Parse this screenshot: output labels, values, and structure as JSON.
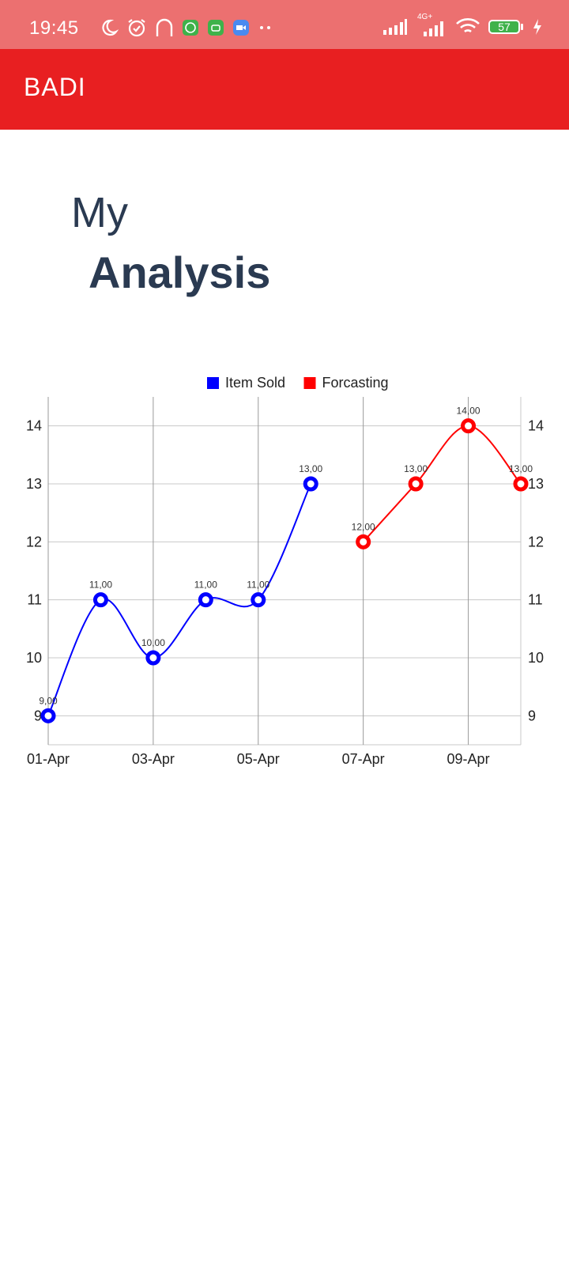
{
  "status_bar": {
    "time": "19:45",
    "network": "4G+",
    "battery": "57"
  },
  "app_bar": {
    "title": "BADI"
  },
  "heading": {
    "line1": "My",
    "line2": "Analysis"
  },
  "colors": {
    "accent": "#e81f21",
    "status_bar": "#ec7070",
    "heading": "#2a3a51",
    "series_sold": "#0000ff",
    "series_forecast": "#ff0000"
  },
  "chart_data": {
    "type": "line",
    "legend_position": "top-center",
    "x_tick_labels": [
      "01-Apr",
      "03-Apr",
      "05-Apr",
      "07-Apr",
      "09-Apr"
    ],
    "x_ticks": [
      1,
      3,
      5,
      7,
      9
    ],
    "xlim": [
      1,
      10
    ],
    "ylim": [
      8.5,
      14.5
    ],
    "y_ticks": [
      9,
      10,
      11,
      12,
      13,
      14
    ],
    "grid": true,
    "series": [
      {
        "name": "Item Sold",
        "color": "#0000ff",
        "x": [
          1,
          2,
          3,
          4,
          5,
          6
        ],
        "values": [
          9,
          11,
          10,
          11,
          11,
          13
        ],
        "labels": [
          "9,00",
          "11,00",
          "10,00",
          "11,00",
          "11,00",
          "13,00"
        ]
      },
      {
        "name": "Forcasting",
        "color": "#ff0000",
        "x": [
          7,
          8,
          9,
          10
        ],
        "values": [
          12,
          13,
          14,
          13
        ],
        "labels": [
          "12,00",
          "13,00",
          "14,00",
          "13,00"
        ]
      }
    ]
  }
}
